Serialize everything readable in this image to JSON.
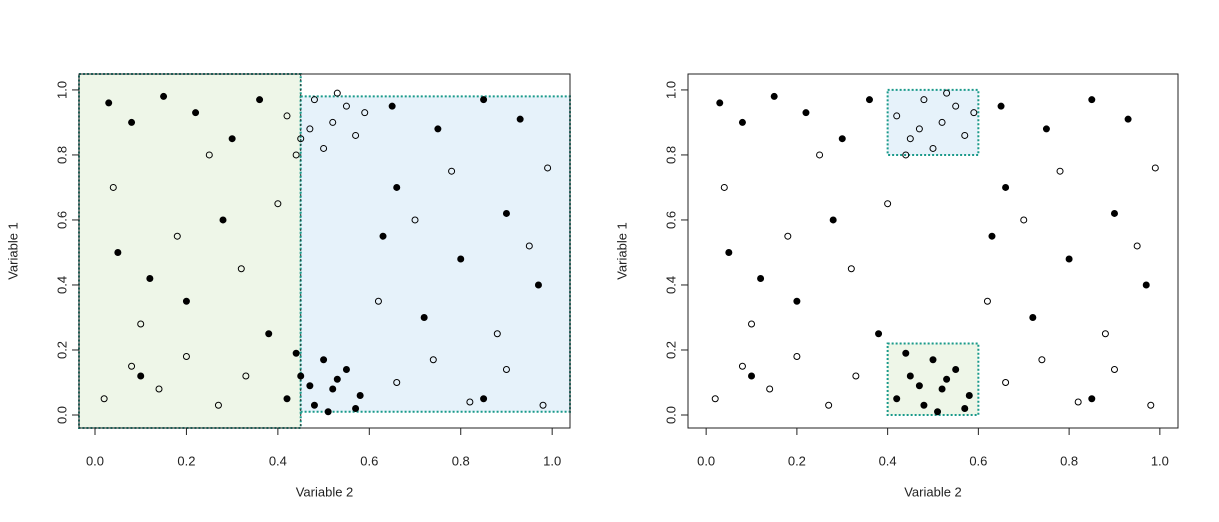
{
  "chart_data": [
    {
      "type": "scatter",
      "x_label": "Variable 2",
      "y_label": "Variable 1",
      "xlim": [
        -0.035,
        1.039
      ],
      "ylim": [
        -0.04,
        1.049
      ],
      "xticks": [
        {
          "value": 0,
          "label": "0.0"
        },
        0.2,
        0.4,
        0.6,
        0.8,
        {
          "value": 1,
          "label": "1.0"
        }
      ],
      "yticks": [
        {
          "value": 0,
          "label": "0.0"
        },
        0.2,
        0.4,
        0.6,
        0.8,
        {
          "value": 1,
          "label": "1.0"
        }
      ],
      "regions": [
        {
          "xlim": [
            -0.035,
            0.45
          ],
          "ylim": [
            -0.04,
            1.049
          ],
          "color": "#eef6e8"
        },
        {
          "xlim": [
            0.45,
            1.039
          ],
          "ylim": [
            0.01,
            0.98
          ],
          "color": "#e6f2fa"
        }
      ],
      "vlines": [
        0.45
      ],
      "series": [
        {
          "color": "#000000",
          "marker": "filled",
          "x": [
            0.42,
            0.45,
            0.48,
            0.5,
            0.52,
            0.55,
            0.57,
            0.44,
            0.53,
            0.58,
            0.47,
            0.51,
            0.03,
            0.08,
            0.15,
            0.22,
            0.3,
            0.36,
            0.65,
            0.75,
            0.85,
            0.93,
            0.05,
            0.12,
            0.2,
            0.28,
            0.63,
            0.72,
            0.8,
            0.9,
            0.97,
            0.38,
            0.66,
            0.1,
            0.85
          ],
          "y": [
            0.05,
            0.12,
            0.03,
            0.17,
            0.08,
            0.14,
            0.02,
            0.19,
            0.11,
            0.06,
            0.09,
            0.01,
            0.96,
            0.9,
            0.98,
            0.93,
            0.85,
            0.97,
            0.95,
            0.88,
            0.97,
            0.91,
            0.5,
            0.42,
            0.35,
            0.6,
            0.55,
            0.3,
            0.48,
            0.62,
            0.4,
            0.25,
            0.7,
            0.12,
            0.05
          ]
        },
        {
          "color": "#000000",
          "marker": "open",
          "x": [
            0.42,
            0.45,
            0.48,
            0.5,
            0.52,
            0.55,
            0.57,
            0.44,
            0.53,
            0.59,
            0.47,
            0.02,
            0.08,
            0.14,
            0.2,
            0.27,
            0.33,
            0.66,
            0.74,
            0.82,
            0.9,
            0.98,
            0.04,
            0.1,
            0.18,
            0.25,
            0.32,
            0.62,
            0.7,
            0.78,
            0.88,
            0.95,
            0.99,
            0.4
          ],
          "y": [
            0.92,
            0.85,
            0.97,
            0.82,
            0.9,
            0.95,
            0.86,
            0.8,
            0.99,
            0.93,
            0.88,
            0.05,
            0.15,
            0.08,
            0.18,
            0.03,
            0.12,
            0.1,
            0.17,
            0.04,
            0.14,
            0.03,
            0.7,
            0.28,
            0.55,
            0.8,
            0.45,
            0.35,
            0.6,
            0.75,
            0.25,
            0.52,
            0.76,
            0.65
          ]
        }
      ]
    },
    {
      "type": "scatter",
      "x_label": "Variable 2",
      "y_label": "Variable 1",
      "xlim": [
        -0.04,
        1.04
      ],
      "ylim": [
        -0.04,
        1.049
      ],
      "xticks": [
        {
          "value": 0,
          "label": "0.0"
        },
        0.2,
        0.4,
        0.6,
        0.8,
        {
          "value": 1,
          "label": "1.0"
        }
      ],
      "yticks": [
        {
          "value": 0,
          "label": "0.0"
        },
        0.2,
        0.4,
        0.6,
        0.8,
        {
          "value": 1,
          "label": "1.0"
        }
      ],
      "regions": [
        {
          "xlim": [
            0.4,
            0.6
          ],
          "ylim": [
            0.8,
            1.0
          ],
          "color": "#e6f2fa"
        },
        {
          "xlim": [
            0.4,
            0.6
          ],
          "ylim": [
            0.0,
            0.22
          ],
          "color": "#eef6e8"
        }
      ],
      "vlines": [],
      "series": [
        {
          "color": "#000000",
          "marker": "filled",
          "x": [
            0.42,
            0.45,
            0.48,
            0.5,
            0.52,
            0.55,
            0.57,
            0.44,
            0.53,
            0.58,
            0.47,
            0.51,
            0.03,
            0.08,
            0.15,
            0.22,
            0.3,
            0.36,
            0.65,
            0.75,
            0.85,
            0.93,
            0.05,
            0.12,
            0.2,
            0.28,
            0.63,
            0.72,
            0.8,
            0.9,
            0.97,
            0.38,
            0.66,
            0.1,
            0.85
          ],
          "y": [
            0.05,
            0.12,
            0.03,
            0.17,
            0.08,
            0.14,
            0.02,
            0.19,
            0.11,
            0.06,
            0.09,
            0.01,
            0.96,
            0.9,
            0.98,
            0.93,
            0.85,
            0.97,
            0.95,
            0.88,
            0.97,
            0.91,
            0.5,
            0.42,
            0.35,
            0.6,
            0.55,
            0.3,
            0.48,
            0.62,
            0.4,
            0.25,
            0.7,
            0.12,
            0.05
          ]
        },
        {
          "color": "#000000",
          "marker": "open",
          "x": [
            0.42,
            0.45,
            0.48,
            0.5,
            0.52,
            0.55,
            0.57,
            0.44,
            0.53,
            0.59,
            0.47,
            0.02,
            0.08,
            0.14,
            0.2,
            0.27,
            0.33,
            0.66,
            0.74,
            0.82,
            0.9,
            0.98,
            0.04,
            0.1,
            0.18,
            0.25,
            0.32,
            0.62,
            0.7,
            0.78,
            0.88,
            0.95,
            0.99,
            0.4
          ],
          "y": [
            0.92,
            0.85,
            0.97,
            0.82,
            0.9,
            0.95,
            0.86,
            0.8,
            0.99,
            0.93,
            0.88,
            0.05,
            0.15,
            0.08,
            0.18,
            0.03,
            0.12,
            0.1,
            0.17,
            0.04,
            0.14,
            0.03,
            0.7,
            0.28,
            0.55,
            0.8,
            0.45,
            0.35,
            0.6,
            0.75,
            0.25,
            0.52,
            0.76,
            0.65
          ]
        }
      ]
    }
  ]
}
